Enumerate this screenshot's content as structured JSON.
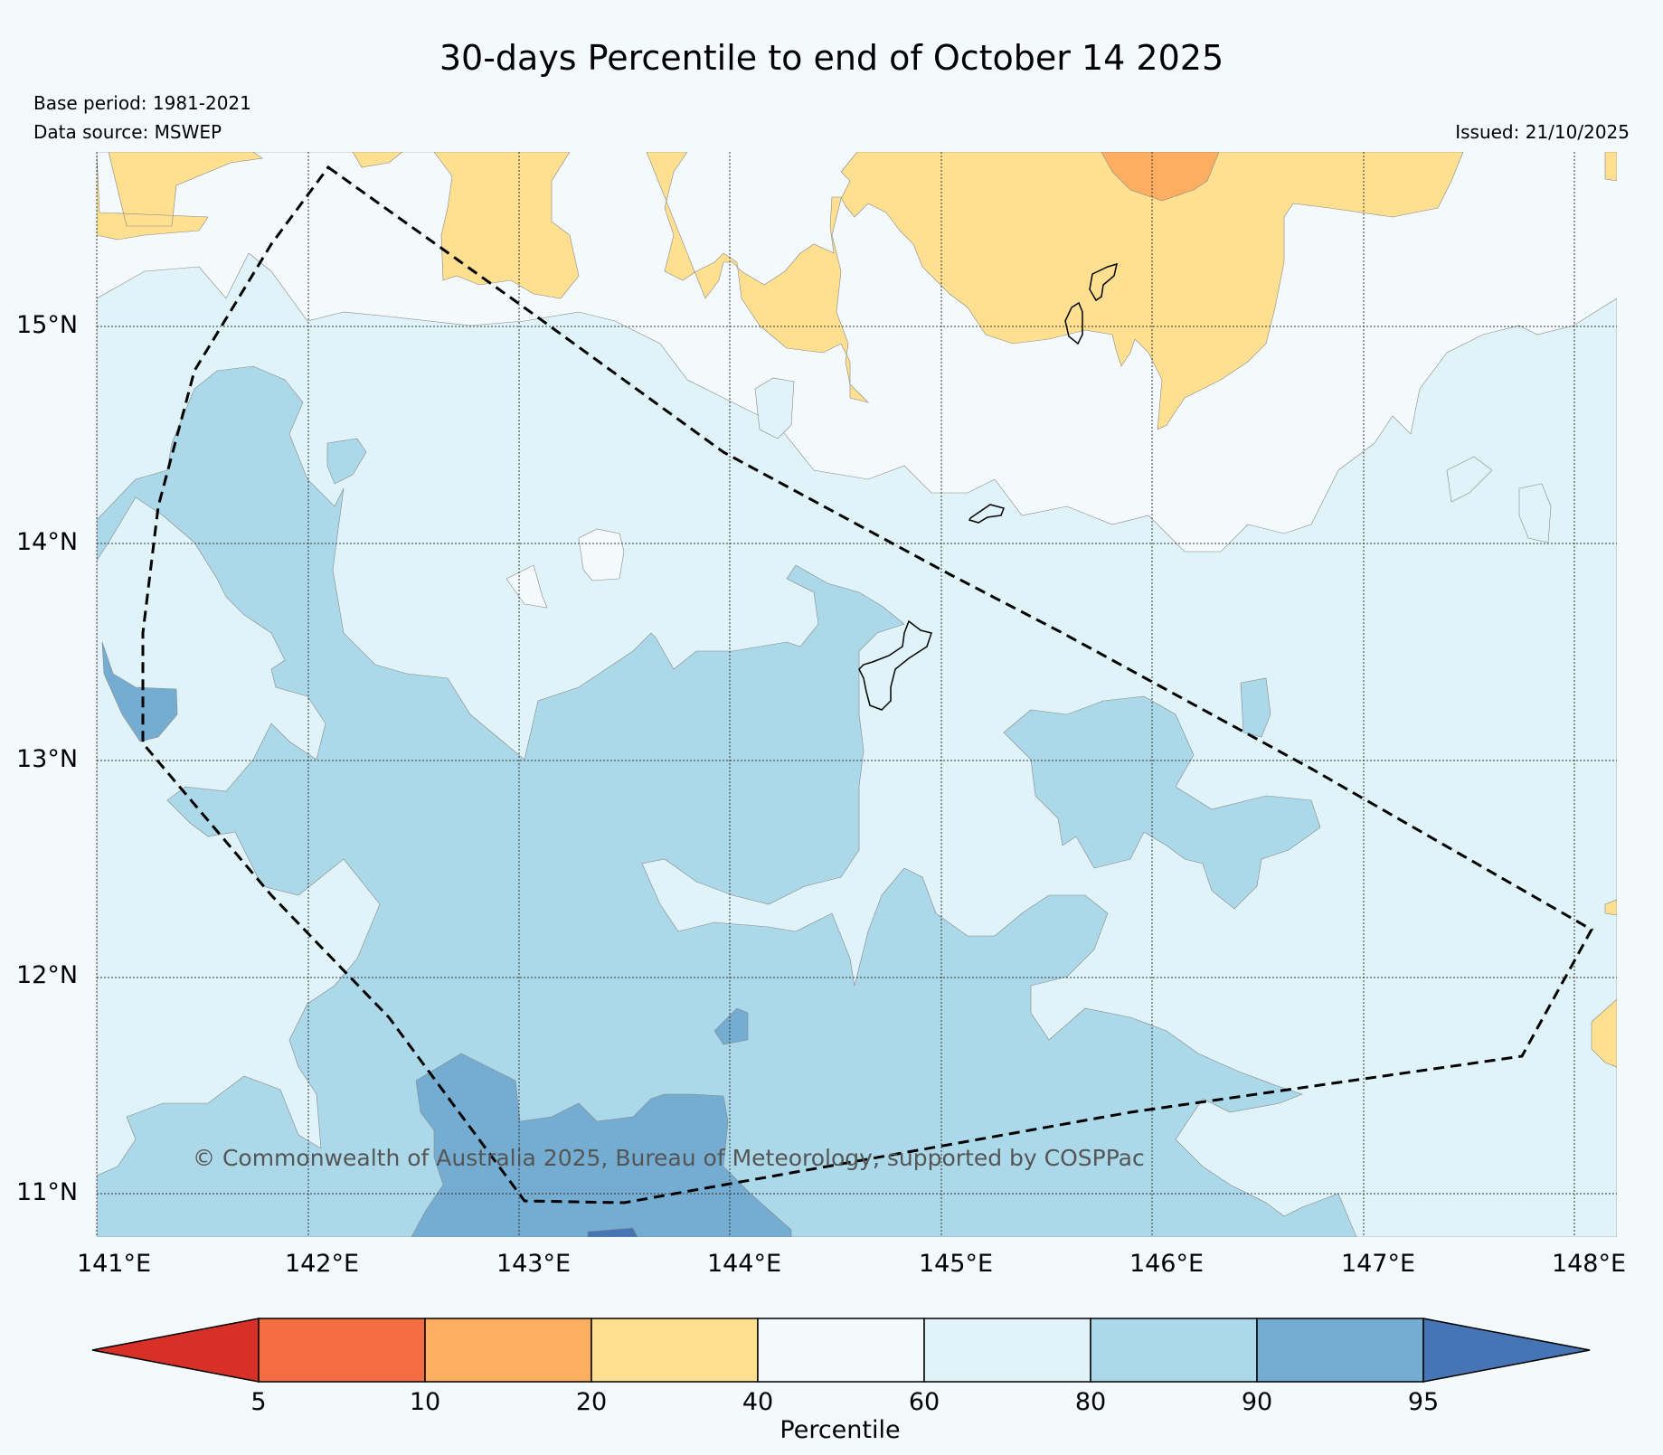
{
  "title": "30-days Percentile to end of October 14 2025",
  "base_period": "Base period: 1981-2021",
  "data_source": "Data source: MSWEP",
  "issued": "Issued: 21/10/2025",
  "copyright": "© Commonwealth of Australia 2025, Bureau of Meteorology, supported by COSPPac",
  "lat_labels": [
    "15°N",
    "14°N",
    "13°N",
    "12°N",
    "11°N"
  ],
  "lon_labels": [
    "141°E",
    "142°E",
    "143°E",
    "144°E",
    "145°E",
    "146°E",
    "147°E",
    "148°E"
  ],
  "colorbar": {
    "title": "Percentile",
    "ticks": [
      "5",
      "10",
      "20",
      "40",
      "60",
      "80",
      "90",
      "95"
    ],
    "colors": [
      "#d73027",
      "#f46d43",
      "#fdae61",
      "#fee090",
      "#f4f9fc",
      "#e0f3f8",
      "#abd9e9",
      "#74add1",
      "#4575b4"
    ]
  },
  "legend_colors": {
    "p10_20": "#fdae61",
    "p20_40": "#fee090",
    "p40_60": "#f4f9fc",
    "p60_80": "#e0f3f8",
    "p80_90": "#abd9e9",
    "p90_95": "#74add1",
    "p95_plus": "#4575b4"
  }
}
